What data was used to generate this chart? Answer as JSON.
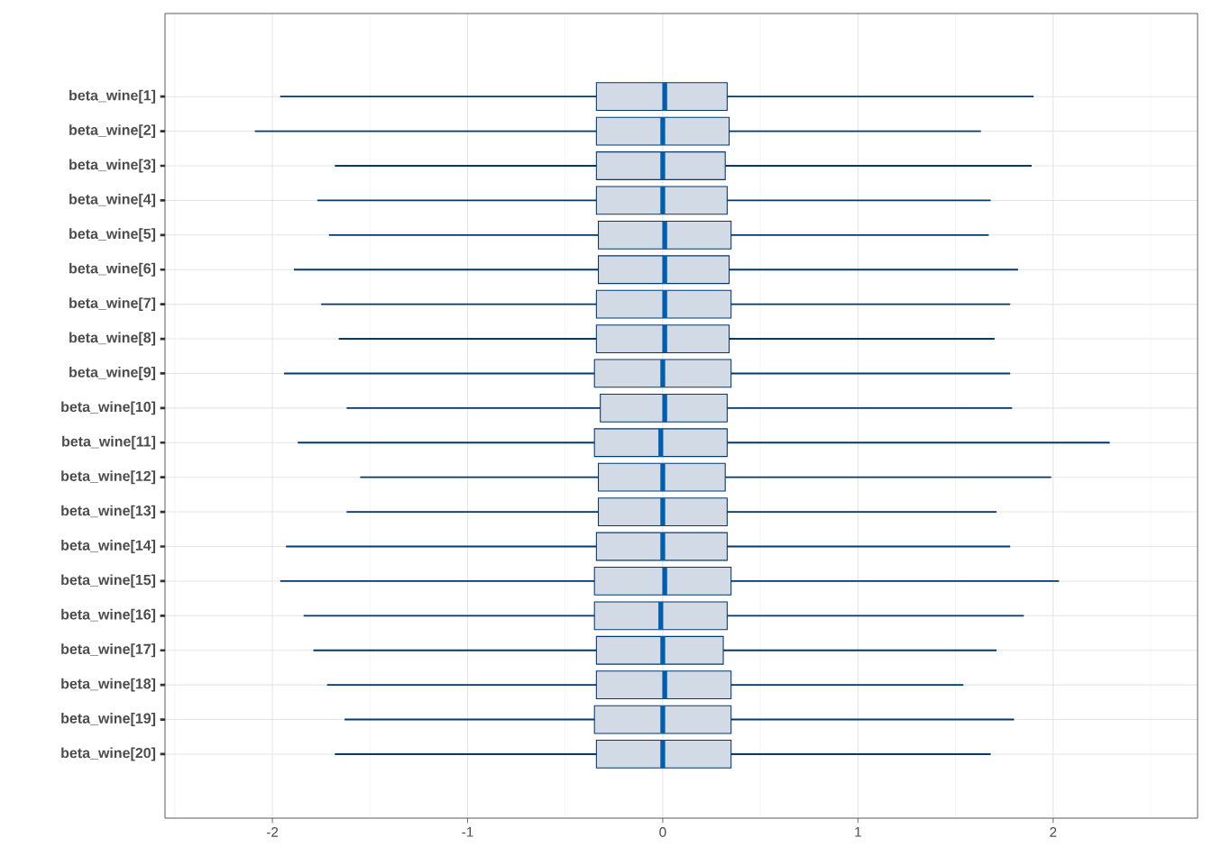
{
  "chart_data": {
    "type": "box",
    "orientation": "horizontal",
    "grid": true,
    "categories": [
      "beta_wine[1]",
      "beta_wine[2]",
      "beta_wine[3]",
      "beta_wine[4]",
      "beta_wine[5]",
      "beta_wine[6]",
      "beta_wine[7]",
      "beta_wine[8]",
      "beta_wine[9]",
      "beta_wine[10]",
      "beta_wine[11]",
      "beta_wine[12]",
      "beta_wine[13]",
      "beta_wine[14]",
      "beta_wine[15]",
      "beta_wine[16]",
      "beta_wine[17]",
      "beta_wine[18]",
      "beta_wine[19]",
      "beta_wine[20]"
    ],
    "xlim": [
      -2.55,
      2.74
    ],
    "xticks": [
      -2,
      -1,
      0,
      1,
      2
    ],
    "series": [
      {
        "color": "#03396c",
        "boxes": [
          {
            "low": -1.96,
            "q1": -0.34,
            "median": 0.01,
            "q3": 0.33,
            "high": 1.9
          },
          {
            "low": -2.09,
            "q1": -0.34,
            "median": 0.0,
            "q3": 0.34,
            "high": 1.63
          },
          {
            "low": -1.68,
            "q1": -0.34,
            "median": 0.0,
            "q3": 0.32,
            "high": 1.89
          },
          {
            "low": -1.77,
            "q1": -0.34,
            "median": 0.0,
            "q3": 0.33,
            "high": 1.68
          },
          {
            "low": -1.71,
            "q1": -0.33,
            "median": 0.01,
            "q3": 0.35,
            "high": 1.67
          },
          {
            "low": -1.89,
            "q1": -0.33,
            "median": 0.01,
            "q3": 0.34,
            "high": 1.82
          },
          {
            "low": -1.75,
            "q1": -0.34,
            "median": 0.01,
            "q3": 0.35,
            "high": 1.78
          },
          {
            "low": -1.66,
            "q1": -0.34,
            "median": 0.01,
            "q3": 0.34,
            "high": 1.7
          },
          {
            "low": -1.94,
            "q1": -0.35,
            "median": 0.0,
            "q3": 0.35,
            "high": 1.78
          },
          {
            "low": -1.62,
            "q1": -0.32,
            "median": 0.01,
            "q3": 0.33,
            "high": 1.79
          },
          {
            "low": -1.87,
            "q1": -0.35,
            "median": -0.01,
            "q3": 0.33,
            "high": 2.29
          },
          {
            "low": -1.55,
            "q1": -0.33,
            "median": 0.0,
            "q3": 0.32,
            "high": 1.99
          },
          {
            "low": -1.62,
            "q1": -0.33,
            "median": 0.0,
            "q3": 0.33,
            "high": 1.71
          },
          {
            "low": -1.93,
            "q1": -0.34,
            "median": 0.0,
            "q3": 0.33,
            "high": 1.78
          },
          {
            "low": -1.96,
            "q1": -0.35,
            "median": 0.01,
            "q3": 0.35,
            "high": 2.03
          },
          {
            "low": -1.84,
            "q1": -0.35,
            "median": -0.01,
            "q3": 0.33,
            "high": 1.85
          },
          {
            "low": -1.79,
            "q1": -0.34,
            "median": 0.0,
            "q3": 0.31,
            "high": 1.71
          },
          {
            "low": -1.72,
            "q1": -0.34,
            "median": 0.01,
            "q3": 0.35,
            "high": 1.54
          },
          {
            "low": -1.63,
            "q1": -0.35,
            "median": 0.0,
            "q3": 0.35,
            "high": 1.8
          },
          {
            "low": -1.68,
            "q1": -0.34,
            "median": 0.0,
            "q3": 0.35,
            "high": 1.68
          }
        ]
      }
    ]
  }
}
